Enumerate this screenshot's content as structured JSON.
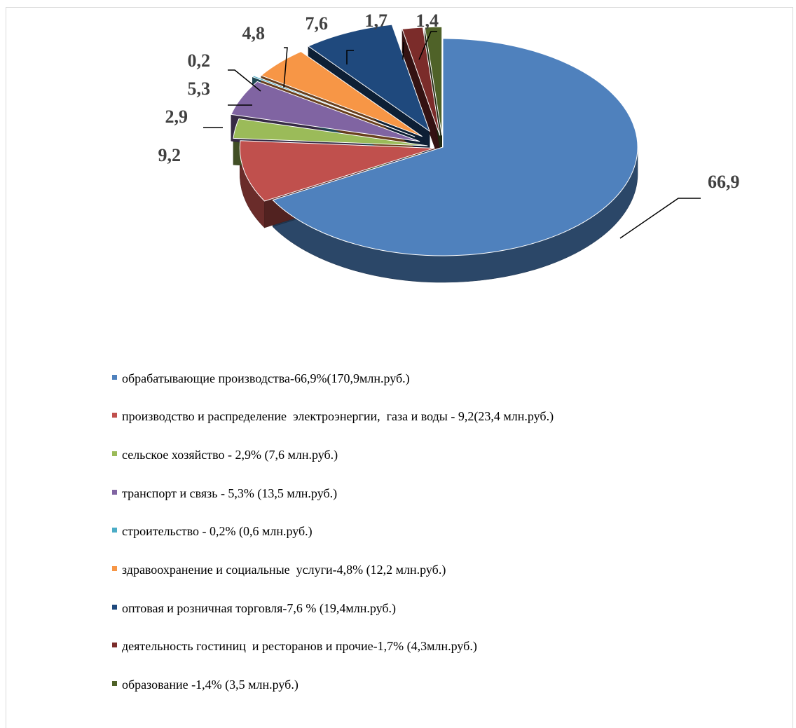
{
  "chart_data": {
    "type": "pie",
    "data_labels": [
      "66,9",
      "9,2",
      "2,9",
      "5,3",
      "0,2",
      "4,8",
      "7,6",
      "1,7",
      "1,4"
    ],
    "slices": [
      {
        "label": "обрабатывающие производства-66,9%(170,9млн.руб.)",
        "value": 66.9,
        "color": "#4F81BD"
      },
      {
        "label": "производство и распределение  электроэнергии,  газа и воды - 9,2(23,4 млн.руб.)",
        "value": 9.2,
        "color": "#C0504D"
      },
      {
        "label": "сельское хозяйство - 2,9% (7,6 млн.руб.)",
        "value": 2.9,
        "color": "#9BBB59"
      },
      {
        "label": "транспорт и связь - 5,3% (13,5 млн.руб.)",
        "value": 5.3,
        "color": "#8064A2"
      },
      {
        "label": "строительство - 0,2% (0,6 млн.руб.)",
        "value": 0.2,
        "color": "#4BACC6"
      },
      {
        "label": "здравоохранение и социальные  услуги-4,8% (12,2 млн.руб.)",
        "value": 4.8,
        "color": "#F79646"
      },
      {
        "label": "оптовая и розничная торговля-7,6 % (19,4млн.руб.)",
        "value": 7.6,
        "color": "#1F497D"
      },
      {
        "label": "деятельность гостиниц  и ресторанов и прочие-1,7% (4,3млн.руб.)",
        "value": 1.7,
        "color": "#7B2C2A"
      },
      {
        "label": "образование -1,4% (3,5 млн.руб.)",
        "value": 1.4,
        "color": "#4F6228"
      }
    ],
    "legend_position": "bottom",
    "exploded": true,
    "three_d": true
  }
}
